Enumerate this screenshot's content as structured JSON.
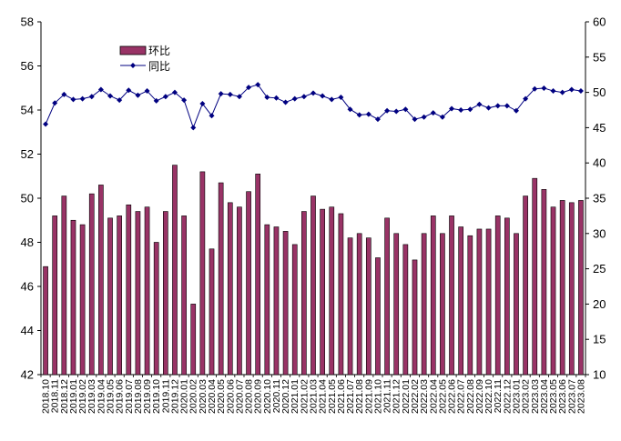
{
  "chart_data": {
    "type": "bar",
    "title": "",
    "xlabel": "",
    "ylabel_left": "",
    "ylabel_right": "",
    "ylim_left": [
      42,
      58
    ],
    "ylim_right": [
      10,
      60
    ],
    "yticks_left": [
      "42",
      "44",
      "46",
      "48",
      "50",
      "52",
      "54",
      "56",
      "58"
    ],
    "yticks_right": [
      "10",
      "15",
      "20",
      "25",
      "30",
      "35",
      "40",
      "45",
      "50",
      "55",
      "60"
    ],
    "legend_position": "top-left",
    "grid": false,
    "bar_color": "#993366",
    "line_color": "#000080",
    "categories": [
      "2018.10",
      "2018.11",
      "2018.12",
      "2019.01",
      "2019.02",
      "2019.03",
      "2019.04",
      "2019.05",
      "2019.06",
      "2019.07",
      "2019.08",
      "2019.09",
      "2019.10",
      "2019.11",
      "2019.12",
      "2020.01",
      "2020.02",
      "2020.03",
      "2020.04",
      "2020.05",
      "2020.06",
      "2020.07",
      "2020.08",
      "2020.09",
      "2020.10",
      "2020.11",
      "2020.12",
      "2021.01",
      "2021.02",
      "2021.03",
      "2021.04",
      "2021.05",
      "2021.06",
      "2021.07",
      "2021.08",
      "2021.09",
      "2021.10",
      "2021.11",
      "2021.12",
      "2022.01",
      "2022.02",
      "2022.03",
      "2022.04",
      "2022.05",
      "2022.06",
      "2022.07",
      "2022.08",
      "2022.09",
      "2022.10",
      "2022.11",
      "2022.12",
      "2023.01",
      "2023.02",
      "2023.03",
      "2023.04",
      "2023.05",
      "2023.06",
      "2023.07",
      "2023.08"
    ],
    "x_tick_labels": [
      "2018.10",
      "2018.11",
      "2018.12",
      "2019.01",
      "2019.02",
      "2019.03",
      "2019.04",
      "2019.05",
      "2019.06",
      "2019.07",
      "2019.08",
      "2019.09",
      "2019.10",
      "2019.11",
      "2019.12",
      "2020.01",
      "2020.02",
      "2020.03",
      "2020.04",
      "2020.05",
      "2020.06",
      "2020.07",
      "2020.08",
      "2020.09",
      "2020.10",
      "2020.11",
      "2020.12",
      "2021.01",
      "2021.02",
      "2021.03",
      "2021.04",
      "2021.05",
      "2021.06",
      "2021.07",
      "2021.08",
      "2021.09",
      "2021.10",
      "2021.11",
      "2021.12",
      "2022.01",
      "2022.02",
      "2022.03",
      "2022.04",
      "2022.05",
      "2022.06",
      "2022.07",
      "2022.08",
      "2022.09",
      "2022.10",
      "2022.11",
      "2022.12",
      "2023.01",
      "2023.02",
      "2023.03",
      "2023.04",
      "2023.05",
      "2023.06",
      "2023.07",
      "2023.08"
    ],
    "series": [
      {
        "name": "环比",
        "type": "bar",
        "axis": "left",
        "values": [
          46.9,
          49.2,
          50.1,
          49.0,
          48.8,
          50.2,
          50.6,
          49.1,
          49.2,
          49.7,
          49.4,
          49.6,
          48.0,
          49.4,
          51.5,
          49.2,
          45.2,
          51.2,
          47.7,
          50.7,
          49.8,
          49.6,
          50.3,
          51.1,
          48.8,
          48.7,
          48.5,
          47.9,
          49.4,
          50.1,
          49.5,
          49.6,
          49.3,
          48.2,
          48.4,
          48.2,
          47.3,
          49.1,
          48.4,
          47.9,
          47.2,
          48.4,
          49.2,
          48.4,
          49.2,
          48.7,
          48.3,
          48.6,
          48.6,
          49.2,
          49.1,
          48.4,
          50.1,
          50.9,
          50.4,
          49.6,
          49.9,
          49.8,
          49.9
        ]
      },
      {
        "name": "同比",
        "type": "line",
        "axis": "right",
        "values": [
          45.5,
          48.5,
          49.7,
          49.0,
          49.1,
          49.4,
          50.4,
          49.5,
          48.9,
          50.3,
          49.6,
          50.2,
          48.8,
          49.4,
          50.0,
          48.9,
          45.0,
          48.4,
          46.7,
          49.8,
          49.7,
          49.4,
          50.7,
          51.1,
          49.3,
          49.2,
          48.6,
          49.1,
          49.4,
          49.9,
          49.5,
          49.0,
          49.3,
          47.6,
          46.8,
          46.9,
          46.2,
          47.4,
          47.3,
          47.6,
          46.2,
          46.5,
          47.1,
          46.5,
          47.7,
          47.5,
          47.6,
          48.3,
          47.8,
          48.1,
          48.1,
          47.4,
          49.1,
          50.5,
          50.6,
          50.2,
          50.0,
          50.4,
          50.2
        ]
      }
    ]
  }
}
